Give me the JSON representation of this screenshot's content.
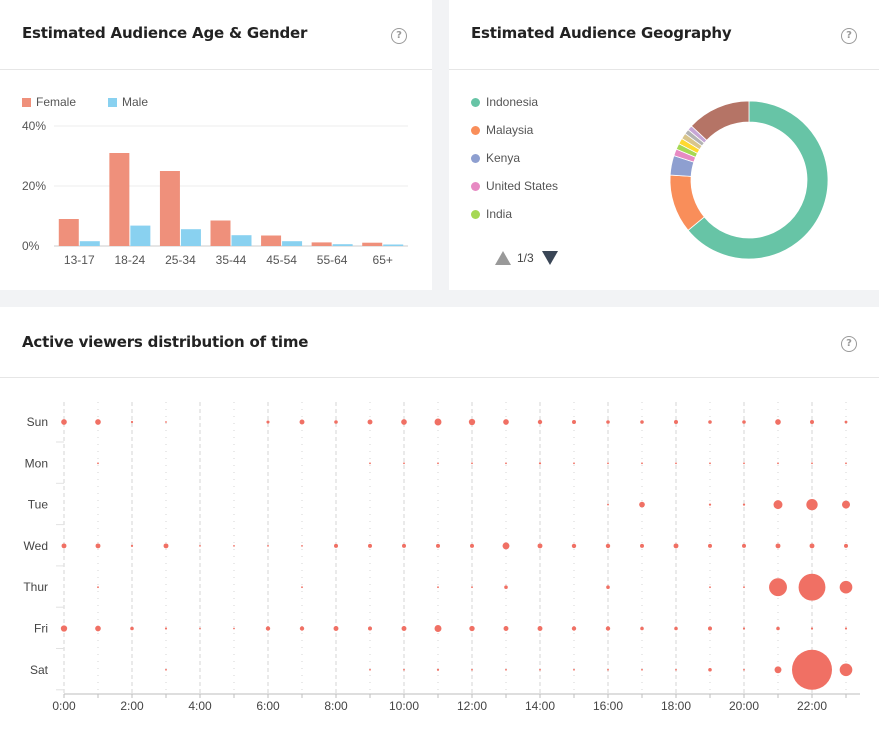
{
  "age_gender": {
    "title": "Estimated Audience Age & Gender",
    "help": "?",
    "legend": [
      {
        "label": "Female",
        "color": "#ef907b"
      },
      {
        "label": "Male",
        "color": "#89d1f0"
      }
    ]
  },
  "geography": {
    "title": "Estimated Audience Geography",
    "help": "?",
    "legend": [
      {
        "label": "Indonesia",
        "color": "#67c4a6"
      },
      {
        "label": "Malaysia",
        "color": "#f98e5a"
      },
      {
        "label": "Kenya",
        "color": "#8e9fd0"
      },
      {
        "label": "United States",
        "color": "#e78ac3"
      },
      {
        "label": "India",
        "color": "#a6d854"
      }
    ],
    "pager": "1/3"
  },
  "active": {
    "title": "Active viewers distribution of time",
    "help": "?"
  },
  "chart_data": [
    {
      "type": "bar",
      "categories": [
        "13-17",
        "18-24",
        "25-34",
        "35-44",
        "45-54",
        "55-64",
        "65+"
      ],
      "series": [
        {
          "name": "Female",
          "values": [
            9,
            31,
            25,
            8.5,
            3.5,
            1.2,
            1.1
          ]
        },
        {
          "name": "Male",
          "values": [
            1.6,
            6.8,
            5.6,
            3.6,
            1.6,
            0.6,
            0.5
          ]
        }
      ],
      "yticks": [
        "0%",
        "20%",
        "40%"
      ],
      "ylim": [
        0,
        40
      ]
    },
    {
      "type": "pie",
      "donut": true,
      "slices": [
        {
          "label": "Indonesia",
          "value": 64,
          "color": "#67c4a6"
        },
        {
          "label": "Malaysia",
          "value": 12,
          "color": "#f98e5a"
        },
        {
          "label": "Kenya",
          "value": 4,
          "color": "#8e9fd0"
        },
        {
          "label": "United States",
          "value": 1.4,
          "color": "#e78ac3"
        },
        {
          "label": "India",
          "value": 1.2,
          "color": "#a6d854"
        },
        {
          "label": "",
          "value": 1.2,
          "color": "#ffd92f"
        },
        {
          "label": "",
          "value": 1.2,
          "color": "#d9c58a"
        },
        {
          "label": "",
          "value": 1.0,
          "color": "#b3b3b3"
        },
        {
          "label": "",
          "value": 1.0,
          "color": "#c6a6d6"
        },
        {
          "label": "",
          "value": 13,
          "color": "#b57466"
        }
      ]
    },
    {
      "type": "scatter",
      "days": [
        "Sun",
        "Mon",
        "Tue",
        "Wed",
        "Thur",
        "Fri",
        "Sat"
      ],
      "hours": [
        0,
        1,
        2,
        3,
        4,
        5,
        6,
        7,
        8,
        9,
        10,
        11,
        12,
        13,
        14,
        15,
        16,
        17,
        18,
        19,
        20,
        21,
        22,
        23
      ],
      "xticks": [
        "0:00",
        "2:00",
        "4:00",
        "6:00",
        "8:00",
        "10:00",
        "12:00",
        "14:00",
        "16:00",
        "18:00",
        "20:00",
        "22:00"
      ],
      "values": [
        [
          2,
          2,
          0.3,
          0.2,
          0,
          0,
          0.6,
          1.5,
          0.8,
          1.5,
          2,
          3,
          2.5,
          2,
          1.2,
          1,
          0.8,
          0.8,
          1,
          0.8,
          0.8,
          2,
          1,
          0.5
        ],
        [
          0,
          0.2,
          0,
          0,
          0,
          0,
          0,
          0,
          0,
          0.2,
          0.2,
          0.2,
          0.2,
          0.2,
          0.3,
          0.2,
          0.2,
          0.2,
          0.2,
          0.2,
          0.2,
          0.2,
          0.2,
          0.2
        ],
        [
          0,
          0,
          0,
          0,
          0,
          0,
          0,
          0,
          0,
          0,
          0,
          0,
          0,
          0,
          0,
          0,
          0.2,
          2,
          0,
          0.3,
          0.3,
          5,
          8,
          4
        ],
        [
          1.5,
          1.5,
          0.3,
          1.5,
          0.2,
          0.2,
          0.2,
          0.2,
          1,
          1,
          1,
          1,
          1,
          3,
          1.5,
          1.2,
          1.2,
          1,
          1.5,
          1,
          1,
          1.5,
          1.5,
          1
        ],
        [
          0,
          0.2,
          0,
          0,
          0,
          0,
          0,
          0.2,
          0,
          0,
          0,
          0.2,
          0.2,
          0.8,
          0,
          0,
          0.8,
          0,
          0,
          0.2,
          0.2,
          20,
          45,
          10
        ],
        [
          2.5,
          2,
          0.8,
          0.3,
          0.2,
          0.2,
          1.2,
          1.2,
          1.5,
          1,
          1.5,
          3,
          1.8,
          1.5,
          1.5,
          1.2,
          1.2,
          0.8,
          0.8,
          1,
          0.3,
          0.8,
          0.3,
          0.3
        ],
        [
          0,
          0,
          0,
          0.2,
          0,
          0,
          0,
          0,
          0,
          0.2,
          0.2,
          0.3,
          0.2,
          0.2,
          0.2,
          0.2,
          0.2,
          0.2,
          0.2,
          0.8,
          0.2,
          3,
          100,
          10
        ]
      ],
      "color": "#f07064"
    }
  ]
}
